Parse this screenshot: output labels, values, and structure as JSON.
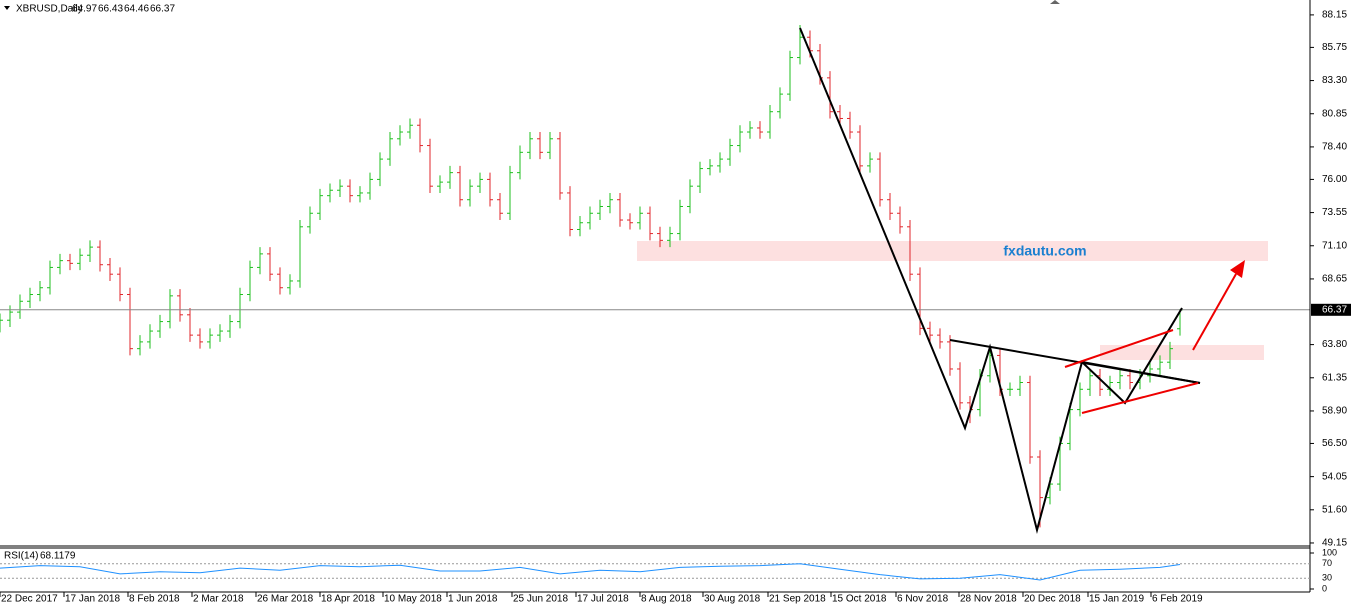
{
  "chart_data": {
    "type": "ohlc",
    "symbol": "XBRUSD,Daily",
    "watermark": "fxdautu.com",
    "up_color": "#1fbf1f",
    "down_color": "#e0262b",
    "xlim": [
      0,
      131
    ],
    "ylim": [
      49.0,
      89.25
    ],
    "xticks": [
      {
        "value": 0,
        "label": "22 Dec 2017"
      },
      {
        "value": 6.4,
        "label": "17 Jan 2018"
      },
      {
        "value": 12.8,
        "label": "8 Feb 2018"
      },
      {
        "value": 19.2,
        "label": "2 Mar 2018"
      },
      {
        "value": 25.6,
        "label": "26 Mar 2018"
      },
      {
        "value": 32,
        "label": "18 Apr 2018"
      },
      {
        "value": 38.3,
        "label": "10 May 2018"
      },
      {
        "value": 44.7,
        "label": "1 Jun 2018"
      },
      {
        "value": 51.2,
        "label": "25 Jun 2018"
      },
      {
        "value": 57.6,
        "label": "17 Jul 2018"
      },
      {
        "value": 64,
        "label": "8 Aug 2018"
      },
      {
        "value": 70.3,
        "label": "30 Aug 2018"
      },
      {
        "value": 76.8,
        "label": "21 Sep 2018"
      },
      {
        "value": 83.1,
        "label": "15 Oct 2018"
      },
      {
        "value": 89.6,
        "label": "6 Nov 2018"
      },
      {
        "value": 95.9,
        "label": "28 Nov 2018"
      },
      {
        "value": 102.3,
        "label": "20 Dec 2018"
      },
      {
        "value": 108.8,
        "label": "15 Jan 2019"
      },
      {
        "value": 115.1,
        "label": "6 Feb 2019"
      }
    ],
    "yticks": [
      88.15,
      85.75,
      {
        "value": 83.3,
        "label": "83.30"
      },
      80.85,
      {
        "value": 78.4,
        "label": "78.40"
      },
      {
        "value": 76,
        "label": "76.00"
      },
      73.55,
      {
        "value": 71.1,
        "label": "71.10"
      },
      68.65,
      {
        "value": 63.8,
        "label": "63.80"
      },
      61.35,
      {
        "value": 58.9,
        "label": "58.90"
      },
      {
        "value": 56.5,
        "label": "56.50"
      },
      54.05,
      {
        "value": 51.6,
        "label": "51.60"
      },
      49.15
    ],
    "open": [
      65.2,
      65.6,
      66.2,
      67.0,
      67.5,
      68.0,
      69.5,
      70.0,
      69.8,
      70.4,
      71.0,
      69.7,
      69.0,
      67.5,
      63.5,
      64.0,
      64.8,
      65.5,
      67.4,
      66.0,
      64.5,
      64.0,
      64.5,
      64.8,
      65.5,
      67.5,
      69.5,
      70.5,
      69.0,
      68.0,
      68.5,
      72.5,
      73.5,
      74.8,
      75.2,
      75.5,
      74.8,
      75.0,
      76.0,
      77.5,
      79.0,
      79.5,
      80.0,
      78.5,
      75.5,
      75.8,
      76.5,
      74.5,
      75.5,
      76.0,
      74.5,
      73.5,
      76.5,
      78.0,
      79.0,
      78.0,
      79.0,
      75.0,
      72.3,
      72.8,
      73.5,
      74.0,
      74.5,
      73.0,
      72.8,
      73.5,
      72.0,
      71.5,
      72.0,
      74.0,
      75.5,
      76.8,
      77.0,
      77.5,
      78.5,
      79.5,
      79.8,
      79.5,
      81.0,
      82.3,
      85.0,
      86.5,
      85.5,
      83.5,
      81.0,
      80.5,
      79.5,
      77.0,
      77.5,
      74.5,
      73.5,
      72.5,
      69.0,
      65.0,
      64.5,
      64.0,
      62.0,
      59.5,
      59.0,
      61.5,
      63.0,
      60.5,
      60.5,
      61.0,
      55.5,
      52.5,
      53.5,
      56.5,
      59.0,
      60.5,
      61.5,
      60.5,
      61.0,
      61.5,
      61.0,
      61.5,
      62.0,
      62.5,
      64.97
    ],
    "high": [
      66.1,
      66.7,
      67.5,
      68.0,
      68.5,
      70.0,
      70.5,
      70.5,
      70.9,
      71.5,
      71.5,
      70.2,
      69.5,
      68.0,
      64.5,
      65.3,
      66.0,
      67.9,
      67.9,
      66.5,
      65.0,
      65.0,
      65.3,
      66.0,
      68.0,
      70.0,
      71.0,
      71.0,
      69.5,
      69.0,
      73.0,
      74.0,
      75.3,
      75.7,
      76.0,
      76.0,
      75.5,
      76.5,
      78.0,
      79.5,
      80.0,
      80.5,
      80.5,
      79.0,
      76.3,
      77.0,
      77.0,
      76.0,
      76.5,
      76.5,
      75.0,
      77.0,
      78.5,
      79.5,
      79.5,
      79.5,
      79.5,
      75.5,
      73.3,
      74.0,
      74.5,
      75.0,
      75.0,
      73.5,
      74.0,
      74.0,
      72.5,
      72.5,
      74.5,
      76.0,
      77.3,
      77.5,
      78.0,
      79.0,
      80.0,
      80.3,
      80.3,
      81.5,
      82.8,
      85.5,
      87.4,
      87.0,
      86.0,
      84.0,
      81.5,
      81.0,
      80.0,
      78.0,
      78.0,
      75.0,
      74.0,
      73.0,
      69.5,
      65.5,
      65.0,
      64.5,
      62.5,
      60.0,
      62.0,
      63.5,
      63.5,
      61.0,
      61.5,
      61.5,
      56.0,
      54.0,
      57.0,
      59.5,
      61.0,
      62.0,
      62.0,
      61.5,
      62.0,
      62.0,
      62.0,
      62.5,
      63.0,
      64.0,
      66.43
    ],
    "low": [
      64.7,
      65.1,
      65.7,
      66.5,
      67.0,
      67.5,
      69.0,
      69.3,
      69.3,
      69.9,
      69.2,
      68.5,
      67.0,
      63.0,
      63.0,
      63.5,
      64.3,
      65.0,
      65.5,
      64.0,
      63.5,
      63.5,
      64.0,
      64.3,
      65.0,
      67.0,
      69.0,
      68.5,
      67.5,
      67.5,
      68.0,
      72.0,
      73.0,
      74.3,
      74.7,
      74.3,
      74.3,
      74.5,
      75.5,
      77.0,
      78.5,
      79.0,
      78.0,
      75.0,
      75.0,
      75.3,
      74.0,
      74.0,
      75.0,
      74.0,
      73.0,
      73.0,
      76.0,
      77.5,
      77.5,
      77.5,
      74.5,
      71.8,
      71.8,
      72.3,
      73.0,
      73.5,
      72.5,
      72.3,
      72.3,
      71.5,
      71.0,
      71.0,
      71.5,
      73.5,
      75.0,
      76.3,
      76.5,
      77.0,
      78.0,
      79.0,
      79.0,
      79.0,
      80.5,
      81.8,
      84.5,
      85.0,
      83.0,
      80.5,
      80.0,
      79.0,
      76.5,
      76.5,
      74.0,
      73.0,
      72.0,
      68.5,
      64.5,
      64.0,
      63.5,
      61.5,
      59.0,
      58.0,
      58.5,
      61.0,
      60.0,
      60.0,
      60.0,
      55.0,
      50.3,
      52.0,
      53.0,
      56.0,
      58.5,
      60.0,
      60.0,
      60.0,
      60.5,
      60.5,
      60.5,
      61.0,
      61.5,
      62.0,
      64.46
    ],
    "close": [
      65.6,
      66.2,
      67.0,
      67.5,
      68.0,
      69.5,
      70.0,
      69.8,
      70.4,
      71.0,
      69.7,
      69.0,
      67.5,
      63.5,
      64.0,
      64.8,
      65.5,
      67.4,
      66.0,
      64.5,
      64.0,
      64.5,
      64.8,
      65.5,
      67.5,
      69.5,
      70.5,
      69.0,
      68.0,
      68.5,
      72.5,
      73.5,
      74.8,
      75.2,
      75.5,
      74.8,
      75.0,
      76.0,
      77.5,
      79.0,
      79.5,
      80.0,
      78.5,
      75.5,
      75.8,
      76.5,
      74.5,
      75.5,
      76.0,
      74.5,
      73.5,
      76.5,
      78.0,
      79.0,
      78.0,
      79.0,
      75.0,
      72.3,
      72.8,
      73.5,
      74.0,
      74.5,
      73.0,
      72.8,
      73.5,
      72.0,
      71.5,
      72.0,
      74.0,
      75.5,
      76.8,
      77.0,
      77.5,
      78.5,
      79.5,
      79.8,
      79.5,
      81.0,
      82.3,
      85.0,
      86.5,
      85.5,
      83.5,
      81.0,
      80.5,
      79.5,
      77.0,
      77.5,
      74.5,
      73.5,
      72.5,
      69.0,
      65.0,
      64.5,
      64.0,
      62.0,
      59.5,
      59.0,
      61.5,
      63.0,
      60.5,
      60.5,
      61.0,
      55.5,
      52.5,
      53.5,
      56.5,
      59.0,
      60.5,
      61.5,
      60.5,
      61.0,
      61.5,
      61.0,
      61.5,
      62.0,
      62.5,
      63.5,
      66.37
    ],
    "indicator": {
      "name": "RSI(14)",
      "color": "#1e90ff",
      "ylim": [
        0,
        100
      ],
      "yticks": [
        100,
        70,
        30,
        0
      ],
      "x": [
        0,
        4,
        8,
        12,
        16,
        20,
        24,
        28,
        32,
        36,
        40,
        44,
        48,
        52,
        56,
        60,
        64,
        68,
        72,
        76,
        80,
        84,
        88,
        92,
        96,
        100,
        104,
        108,
        112,
        116,
        118
      ],
      "values": [
        58,
        65,
        62,
        42,
        48,
        45,
        58,
        52,
        65,
        62,
        66,
        50,
        50,
        60,
        42,
        52,
        48,
        60,
        63,
        65,
        70,
        55,
        40,
        28,
        30,
        40,
        25,
        52,
        55,
        60,
        68.1179
      ]
    }
  }
}
